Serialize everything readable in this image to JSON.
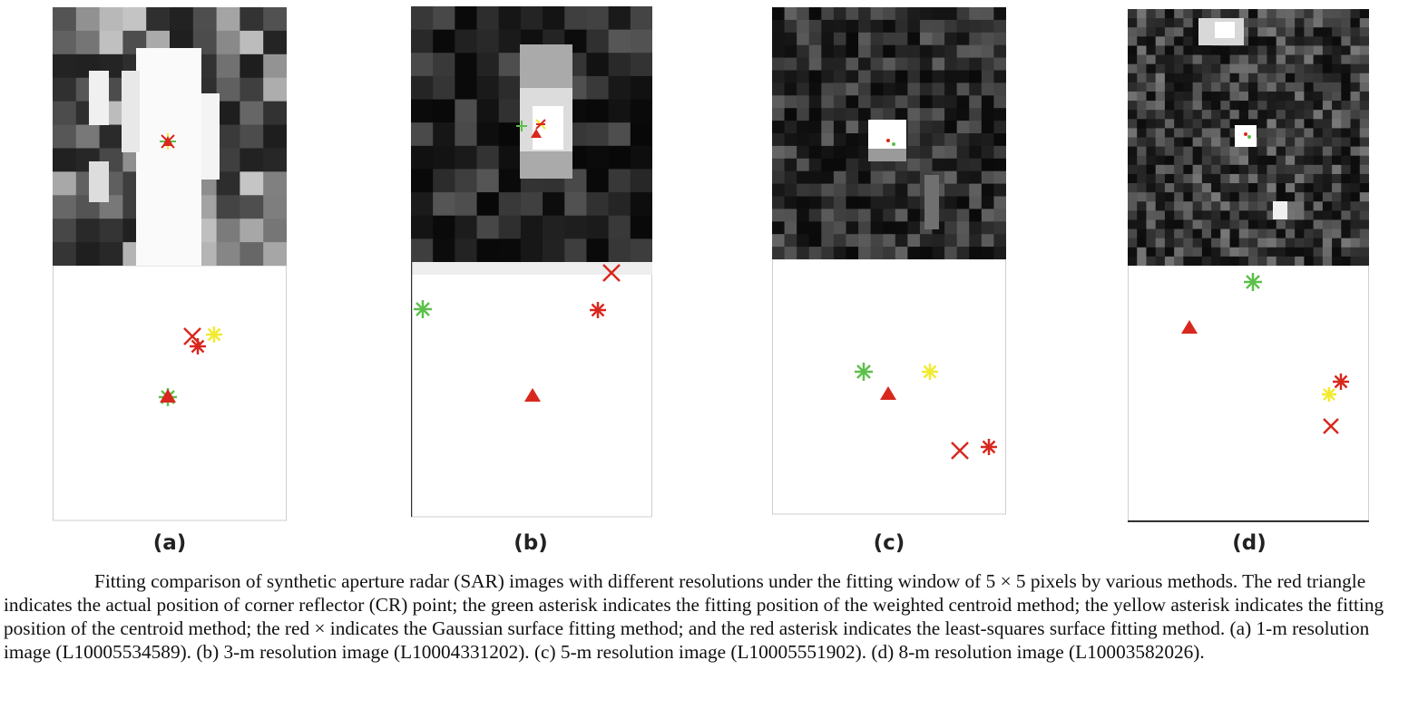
{
  "figure": {
    "panels": [
      {
        "id": "a",
        "label": "(a)",
        "resolution_m": 1,
        "image_id": "L10005534589"
      },
      {
        "id": "b",
        "label": "(b)",
        "resolution_m": 3,
        "image_id": "L10004331202"
      },
      {
        "id": "c",
        "label": "(c)",
        "resolution_m": 5,
        "image_id": "L10005551902"
      },
      {
        "id": "d",
        "label": "(d)",
        "resolution_m": 8,
        "image_id": "L10003582026"
      }
    ],
    "legend_colors": {
      "cr_true_position": "#d8281e",
      "weighted_centroid": "#5cc04a",
      "centroid": "#f2ea30",
      "gaussian_surface": "#d8281e",
      "least_squares_surface": "#d8281e"
    },
    "caption": "Fitting comparison of synthetic aperture radar (SAR) images with different resolutions under the fitting window of 5 × 5 pixels by various methods. The red triangle indicates the actual position of corner reflector (CR) point; the green asterisk indicates the fitting position of the weighted centroid method; the yellow asterisk   indicates the fitting position of the centroid method; the red × indicates the Gaussian surface fitting method; and the red asterisk indicates the least-squares surface fitting method. (a) 1-m resolution image (L10005534589). (b) 3-m resolution image (L10004331202). (c) 5-m resolution image (L10005551902). (d) 8-m resolution image (L10003582026)."
  }
}
